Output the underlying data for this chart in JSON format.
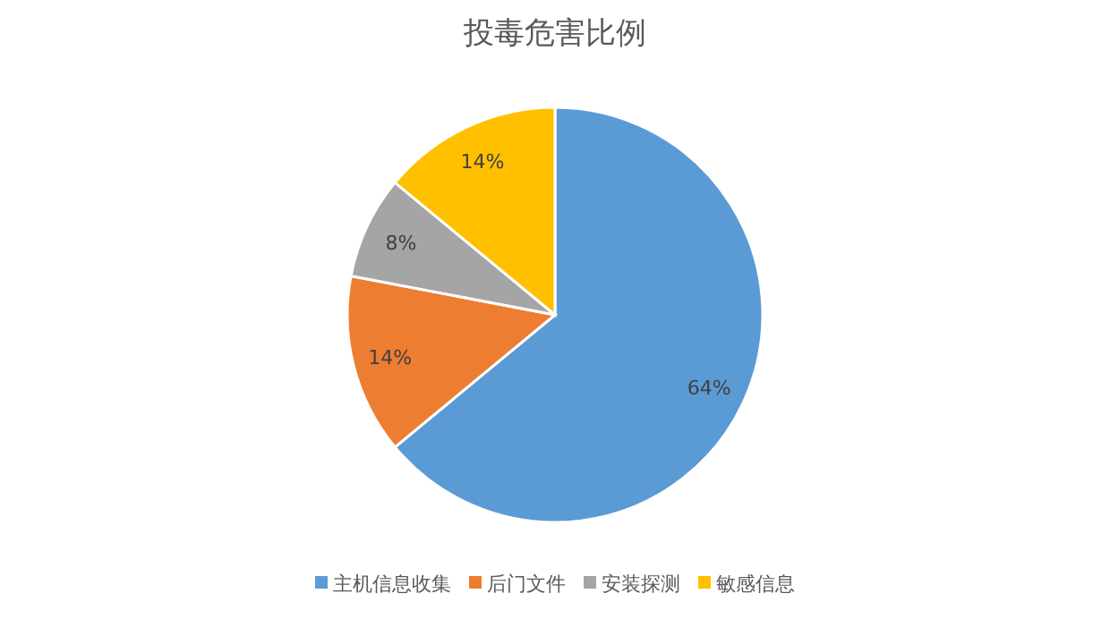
{
  "chart_data": {
    "type": "pie",
    "title": "投毒危害比例",
    "categories": [
      "主机信息收集",
      "后门文件",
      "安装探测",
      "敏感信息"
    ],
    "values": [
      64,
      14,
      8,
      14
    ],
    "colors": [
      "#5b9bd5",
      "#ed7d31",
      "#a5a5a5",
      "#ffc000"
    ],
    "value_labels": [
      "64%",
      "14%",
      "8%",
      "14%"
    ],
    "legend": "bottom"
  }
}
